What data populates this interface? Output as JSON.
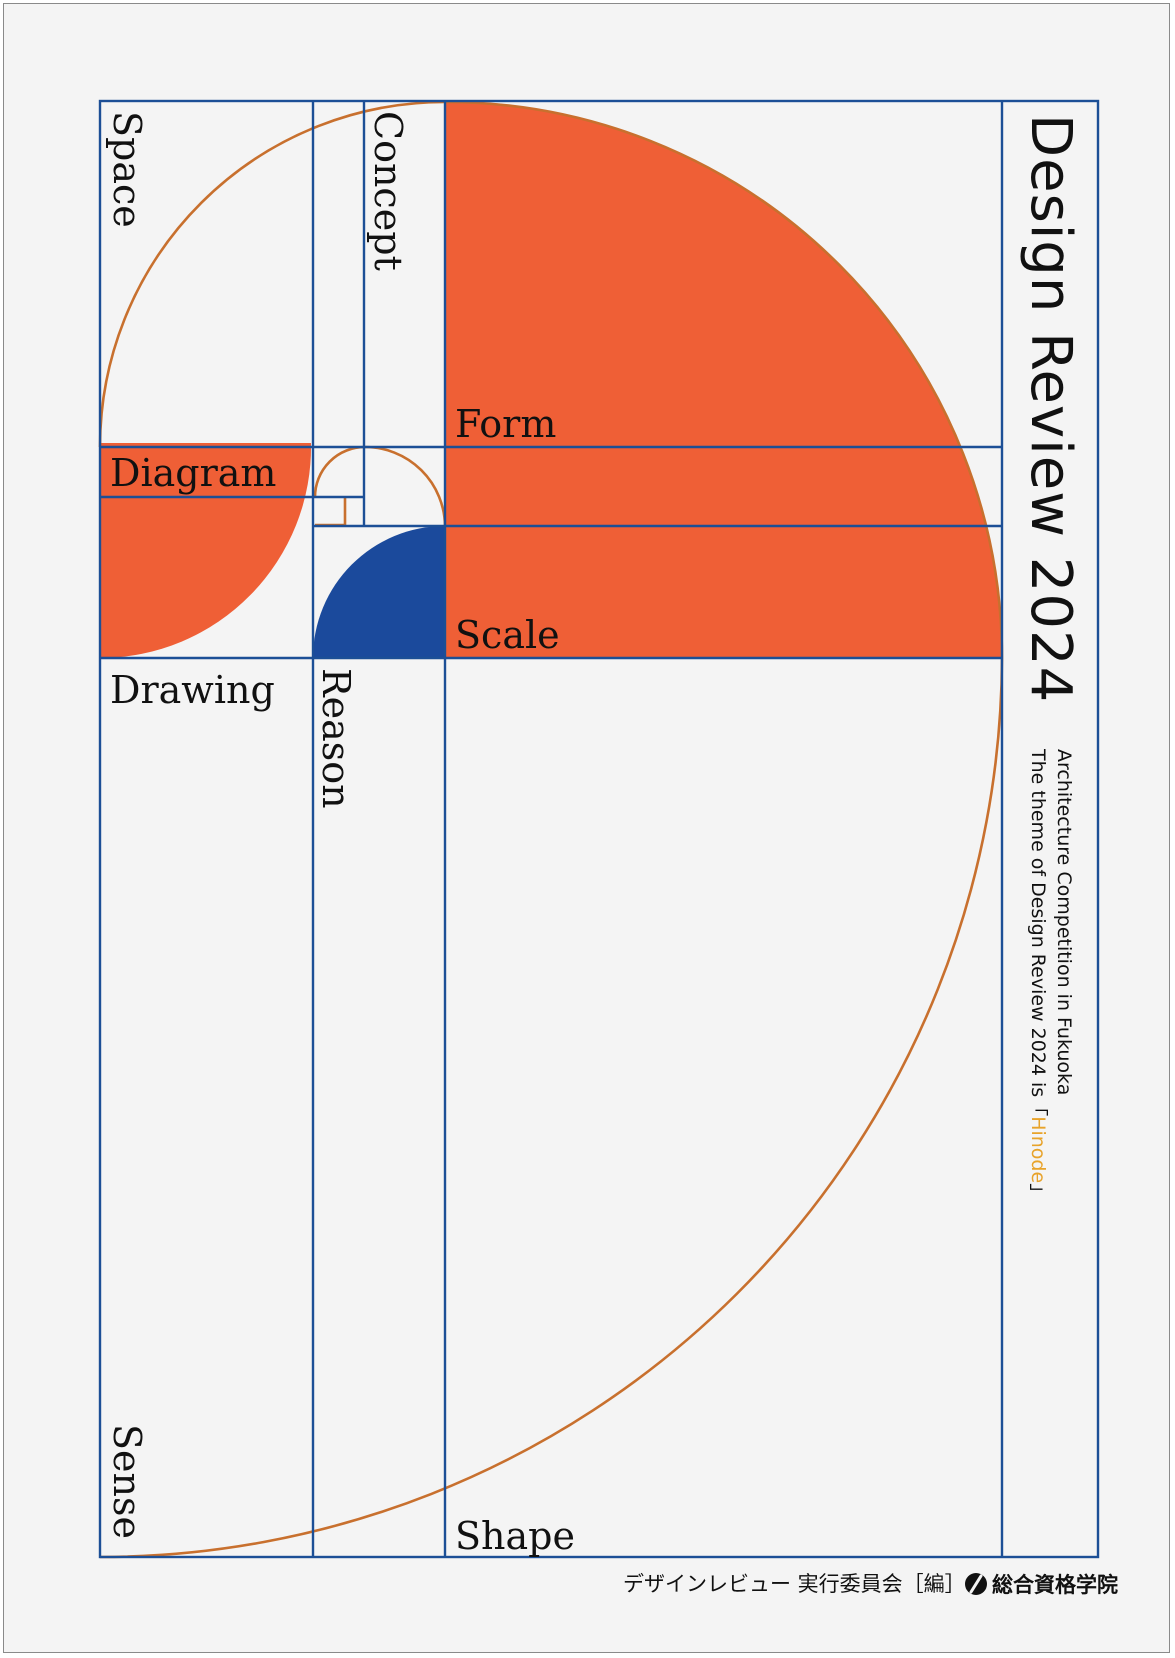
{
  "book": {
    "title": "Design Review 2024",
    "subtitle_line1": "Architecture Competition in Fukuoka",
    "subtitle_line2_prefix": "The theme of Design Review 2024 is「",
    "subtitle_line2_highlight": "Hinode",
    "subtitle_line2_suffix": "」",
    "editor": "デザインレビュー 実行委員会［編］",
    "publisher": "総合資格学院"
  },
  "words": {
    "space": "Space",
    "concept": "Concept",
    "form": "Form",
    "diagram": "Diagram",
    "scale": "Scale",
    "drawing": "Drawing",
    "reason": "Reason",
    "sense": "Sense",
    "shape": "Shape"
  },
  "colors": {
    "background": "#f4f4f4",
    "grid_line": "#1c4f96",
    "orange": "#ef5f36",
    "blue": "#1b4a9c",
    "spiral": "#c8702e",
    "highlight": "#e8a32a",
    "text": "#111111"
  },
  "icons": {
    "publisher_logo": "publisher-logo-icon"
  }
}
